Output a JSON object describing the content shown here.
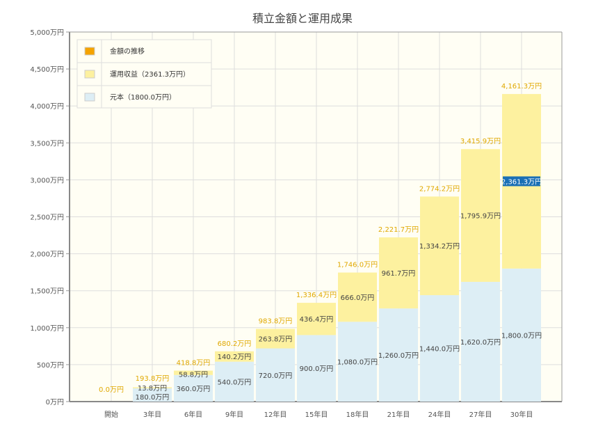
{
  "chart_data": {
    "type": "bar",
    "stacked": true,
    "title": "積立金額と運用成果",
    "categories": [
      "開始",
      "3年目",
      "6年目",
      "9年目",
      "12年目",
      "15年目",
      "18年目",
      "21年目",
      "24年目",
      "27年目",
      "30年目"
    ],
    "series": [
      {
        "name": "元本（1800.0万円）",
        "color": "#ddeef5",
        "values": [
          0,
          180.0,
          360.0,
          540.0,
          720.0,
          900.0,
          1080.0,
          1260.0,
          1440.0,
          1620.0,
          1800.0
        ],
        "labels": [
          "",
          "180.0万円",
          "360.0万円",
          "540.0万円",
          "720.0万円",
          "900.0万円",
          "1,080.0万円",
          "1,260.0万円",
          "1,440.0万円",
          "1,620.0万円",
          "1,800.0万円"
        ]
      },
      {
        "name": "運用収益（2361.3万円）",
        "color": "#fdf19f",
        "values": [
          0,
          13.8,
          58.8,
          140.2,
          263.8,
          436.4,
          666.0,
          961.7,
          1334.2,
          1795.9,
          2361.3
        ],
        "labels": [
          "",
          "13.8万円",
          "58.8万円",
          "140.2万円",
          "263.8万円",
          "436.4万円",
          "666.0万円",
          "961.7万円",
          "1,334.2万円",
          "1,795.9万円",
          "2,361.3万円"
        ]
      }
    ],
    "totals": [
      0.0,
      193.8,
      418.8,
      680.2,
      983.8,
      1336.4,
      1746.0,
      2221.7,
      2774.2,
      3415.9,
      4161.3
    ],
    "total_labels": [
      "0.0万円",
      "193.8万円",
      "418.8万円",
      "680.2万円",
      "983.8万円",
      "1,336.4万円",
      "1,746.0万円",
      "2,221.7万円",
      "2,774.2万円",
      "3,415.9万円",
      "4,161.3万円"
    ],
    "legend": [
      {
        "name": "金額の推移",
        "color": "#f5a300"
      },
      {
        "name": "運用収益（2361.3万円）",
        "color": "#fdf19f"
      },
      {
        "name": "元本（1800.0万円）",
        "color": "#ddeef5"
      }
    ],
    "legend_position": "top-left",
    "ylim": [
      0,
      5000
    ],
    "yticks": [
      "0万円",
      "500万円",
      "1,000万円",
      "1,500万円",
      "2,000万円",
      "2,500万円",
      "3,000万円",
      "3,500万円",
      "4,000万円",
      "4,500万円",
      "5,000万円"
    ],
    "grid": true,
    "highlight_color": "#1a6fb5",
    "total_label_color": "#e0a800"
  }
}
